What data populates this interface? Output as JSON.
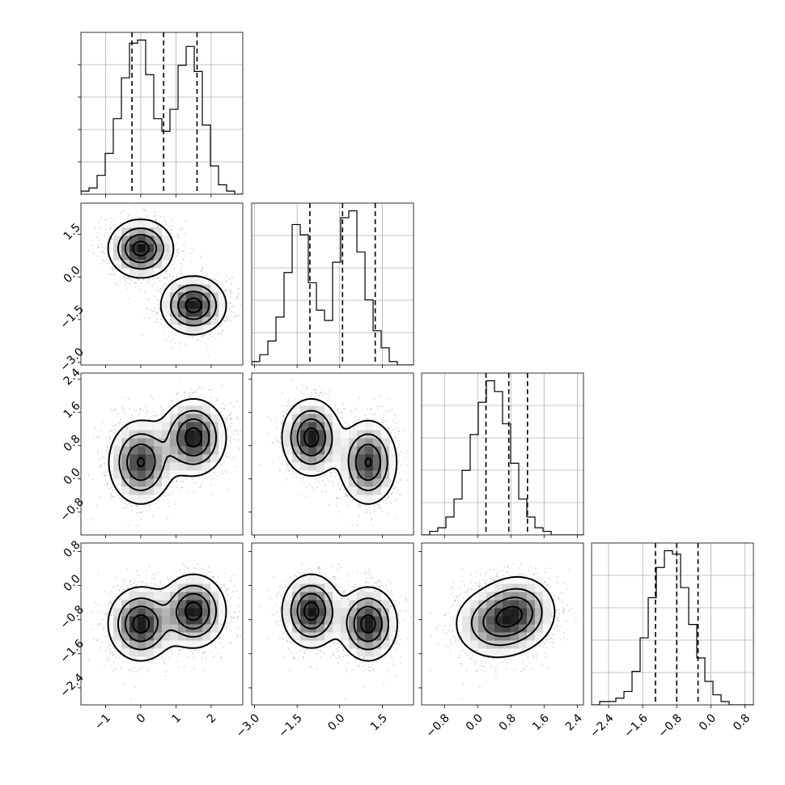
{
  "chart_data": {
    "type": "corner",
    "title": "",
    "variables": [
      {
        "range": [
          -1.7,
          2.9
        ],
        "ticks": [
          -1,
          0,
          1,
          2
        ],
        "tick_labels": [
          "−1",
          "0",
          "1",
          "2"
        ],
        "quantiles": [
          -0.25,
          0.65,
          1.6
        ]
      },
      {
        "range": [
          -3.1,
          2.6
        ],
        "ticks": [
          -3.0,
          -1.5,
          0.0,
          1.5
        ],
        "tick_labels": [
          "−3.0",
          "−1.5",
          "0.0",
          "1.5"
        ],
        "quantiles": [
          -1.05,
          0.1,
          1.25
        ]
      },
      {
        "range": [
          -1.35,
          2.55
        ],
        "ticks": [
          -0.8,
          0.0,
          0.8,
          1.6,
          2.4
        ],
        "tick_labels": [
          "−0.8",
          "0.0",
          "0.8",
          "1.6",
          "2.4"
        ],
        "quantiles": [
          0.2,
          0.75,
          1.2
        ]
      },
      {
        "range": [
          -2.8,
          1.0
        ],
        "ticks": [
          -2.4,
          -1.6,
          -0.8,
          0.0,
          0.8
        ],
        "tick_labels": [
          "−2.4",
          "−1.6",
          "−0.8",
          "0.0",
          "0.8"
        ],
        "quantiles": [
          -1.3,
          -0.8,
          -0.3
        ]
      }
    ],
    "histograms": [
      [
        1,
        2,
        6,
        13,
        24,
        37,
        48,
        49,
        38,
        24,
        20,
        27,
        41,
        47,
        39,
        22,
        9,
        3,
        1,
        0
      ],
      [
        1,
        3,
        7,
        14,
        27,
        41,
        38,
        24,
        16,
        13,
        30,
        43,
        45,
        33,
        19,
        10,
        5,
        1,
        0,
        0
      ],
      [
        0,
        1,
        2,
        5,
        10,
        18,
        28,
        37,
        43,
        40,
        31,
        20,
        10,
        5,
        2,
        1,
        0,
        0,
        0,
        0
      ],
      [
        0,
        1,
        1,
        2,
        4,
        10,
        20,
        32,
        41,
        46,
        45,
        35,
        24,
        14,
        7,
        3,
        1,
        0,
        0,
        0
      ]
    ],
    "mixture_components": [
      {
        "weight": 0.5,
        "mean": [
          0.0,
          1.0,
          0.4,
          -0.9
        ],
        "sd": [
          0.45,
          0.5,
          0.5,
          0.42
        ]
      },
      {
        "weight": 0.5,
        "mean": [
          1.5,
          -1.0,
          1.0,
          -0.6
        ],
        "sd": [
          0.45,
          0.5,
          0.45,
          0.42
        ]
      }
    ],
    "grid": true,
    "legend": "none"
  }
}
